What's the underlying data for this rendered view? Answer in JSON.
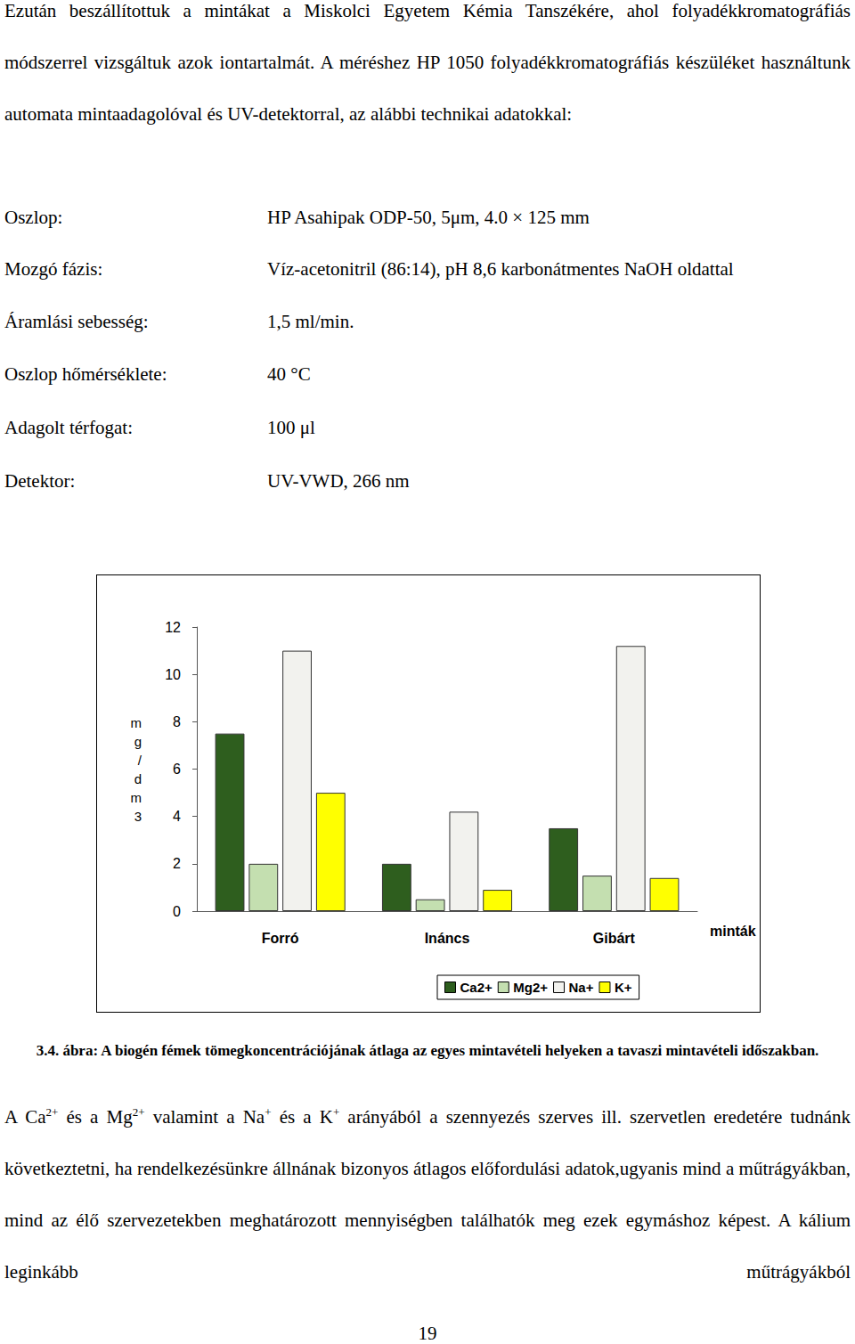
{
  "text_before": "Ezután beszállítottuk a mintákat a Miskolci Egyetem Kémia Tanszékére, ahol folyadékkromatográfiás módszerrel vizsgáltuk azok iontartalmát. A méréshez HP 1050 folyadékkromatográfiás készüléket használtunk automata mintaadagolóval és UV-detektorral, az alábbi technikai adatokkal:",
  "settings": [
    {
      "label": "Oszlop:",
      "value": "HP Asahipak ODP-50, 5μm, 4.0 × 125 mm"
    },
    {
      "label": "Mozgó fázis:",
      "value": "Víz-acetonitril (86:14), pH 8,6 karbonátmentes NaOH oldattal"
    },
    {
      "label": "Áramlási sebesség:",
      "value": "1,5 ml/min."
    },
    {
      "label": "Oszlop hőmérséklete:",
      "value": "40 °C"
    },
    {
      "label": "Adagolt térfogat:",
      "value": "100 μl"
    },
    {
      "label": "Detektor:",
      "value": "UV-VWD, 266 nm"
    }
  ],
  "chart_data": {
    "type": "bar",
    "categories": [
      "Forró",
      "Ináncs",
      "Gibárt"
    ],
    "series": [
      {
        "name": "Ca2+",
        "color": "#2e5e1e",
        "values": [
          7.5,
          2.0,
          3.5
        ]
      },
      {
        "name": "Mg2+",
        "color": "#c4dfb0",
        "values": [
          2.0,
          0.5,
          1.5
        ]
      },
      {
        "name": "Na+",
        "color": "#f2f2ee",
        "values": [
          11.0,
          4.2,
          11.2
        ]
      },
      {
        "name": "K+",
        "color": "#ffff00",
        "values": [
          5.0,
          0.9,
          1.4
        ]
      }
    ],
    "ylabel": "mg/dm3",
    "xlabel": "minták",
    "ylim": [
      0,
      12
    ],
    "yticks": [
      0,
      2,
      4,
      6,
      8,
      10,
      12
    ],
    "legend": "bottom",
    "grid": false
  },
  "caption": "3.4. ábra: A biogén fémek tömegkoncentrációjának átlaga az egyes mintavételi helyeken a tavaszi mintavételi időszakban.",
  "text_after": [
    {
      "text": "A Ca"
    },
    {
      "sup": "2+"
    },
    {
      "text": " és a Mg"
    },
    {
      "sup": "2+"
    },
    {
      "text": " valamint a Na"
    },
    {
      "sup": "+"
    },
    {
      "text": " és a K"
    },
    {
      "sup": "+"
    },
    {
      "text": " arányából a szennyezés szerves ill. szervetlen eredetére tudnánk következtetni, ha rendelkezésünkre állnának bizonyos átlagos előfordulási adatok,ugyanis mind a műtrágyákban, mind az élő szervezetekben meghatározott mennyiségben találhatók meg ezek egymáshoz képest. A kálium leginkább műtrágyákból"
    }
  ],
  "page_number": "19"
}
